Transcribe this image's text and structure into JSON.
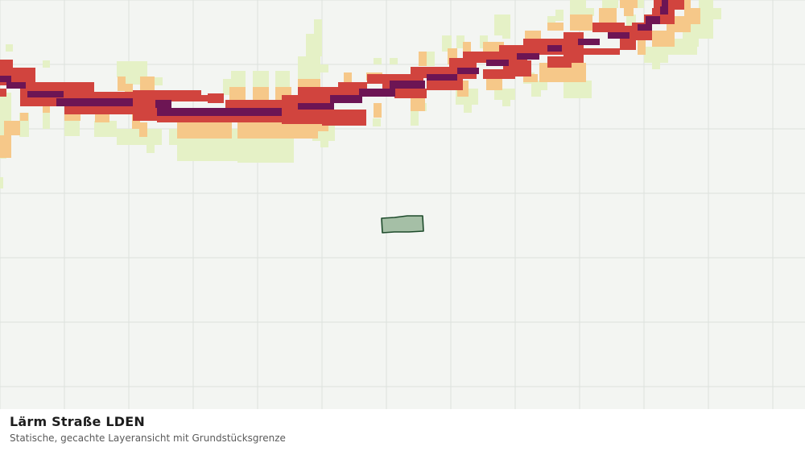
{
  "caption": {
    "title": "Lärm Straße LDEN",
    "subtitle": "Statische, gecachte Layeransicht mit Grundstücksgrenze"
  },
  "colors": {
    "background": "#f3f5f2",
    "grid": "#dde1dc",
    "noise_level_1": "#e5f1c6",
    "noise_level_2": "#f6c889",
    "noise_level_3": "#d1443e",
    "noise_level_4": "#6d1554",
    "parcel_fill": "#a5bfa6",
    "parcel_stroke": "#1c4a2a"
  }
}
